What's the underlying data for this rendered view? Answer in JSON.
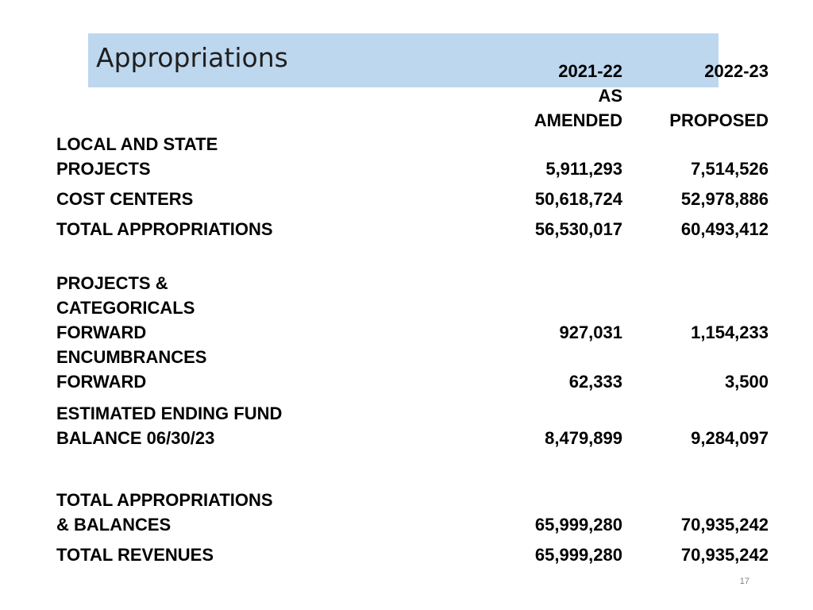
{
  "title": "Appropriations",
  "headers": {
    "col1_line1": "2021-22",
    "col1_line2": "AS",
    "col1_line3": "AMENDED",
    "col2_line1": "2022-23",
    "col2_line2": "PROPOSED"
  },
  "rows": [
    {
      "label_line1": "LOCAL AND STATE",
      "label_line2": "PROJECTS",
      "col1": "5,911,293",
      "col2": "7,514,526"
    },
    {
      "label_line1": "COST CENTERS",
      "col1": "50,618,724",
      "col2": "52,978,886"
    },
    {
      "label_line1": "TOTAL APPROPRIATIONS",
      "col1": "56,530,017",
      "col2": "60,493,412"
    },
    {
      "label_line1": "PROJECTS &",
      "label_line2": "CATEGORICALS",
      "label_line3": "FORWARD",
      "col1": "927,031",
      "col2": "1,154,233"
    },
    {
      "label_line1": "ENCUMBRANCES",
      "label_line2": "FORWARD",
      "col1": "62,333",
      "col2": "3,500"
    },
    {
      "label_line1": "ESTIMATED ENDING FUND",
      "label_line2": "BALANCE 06/30/23",
      "col1": "8,479,899",
      "col2": "9,284,097"
    },
    {
      "label_line1": "TOTAL APPROPRIATIONS",
      "label_line2": "& BALANCES",
      "col1": "65,999,280",
      "col2": "70,935,242"
    },
    {
      "label_line1": "TOTAL REVENUES",
      "col1": "65,999,280",
      "col2": "70,935,242"
    }
  ],
  "page_number": "17",
  "colors": {
    "title_band": "#bdd7ee",
    "text": "#000000"
  }
}
